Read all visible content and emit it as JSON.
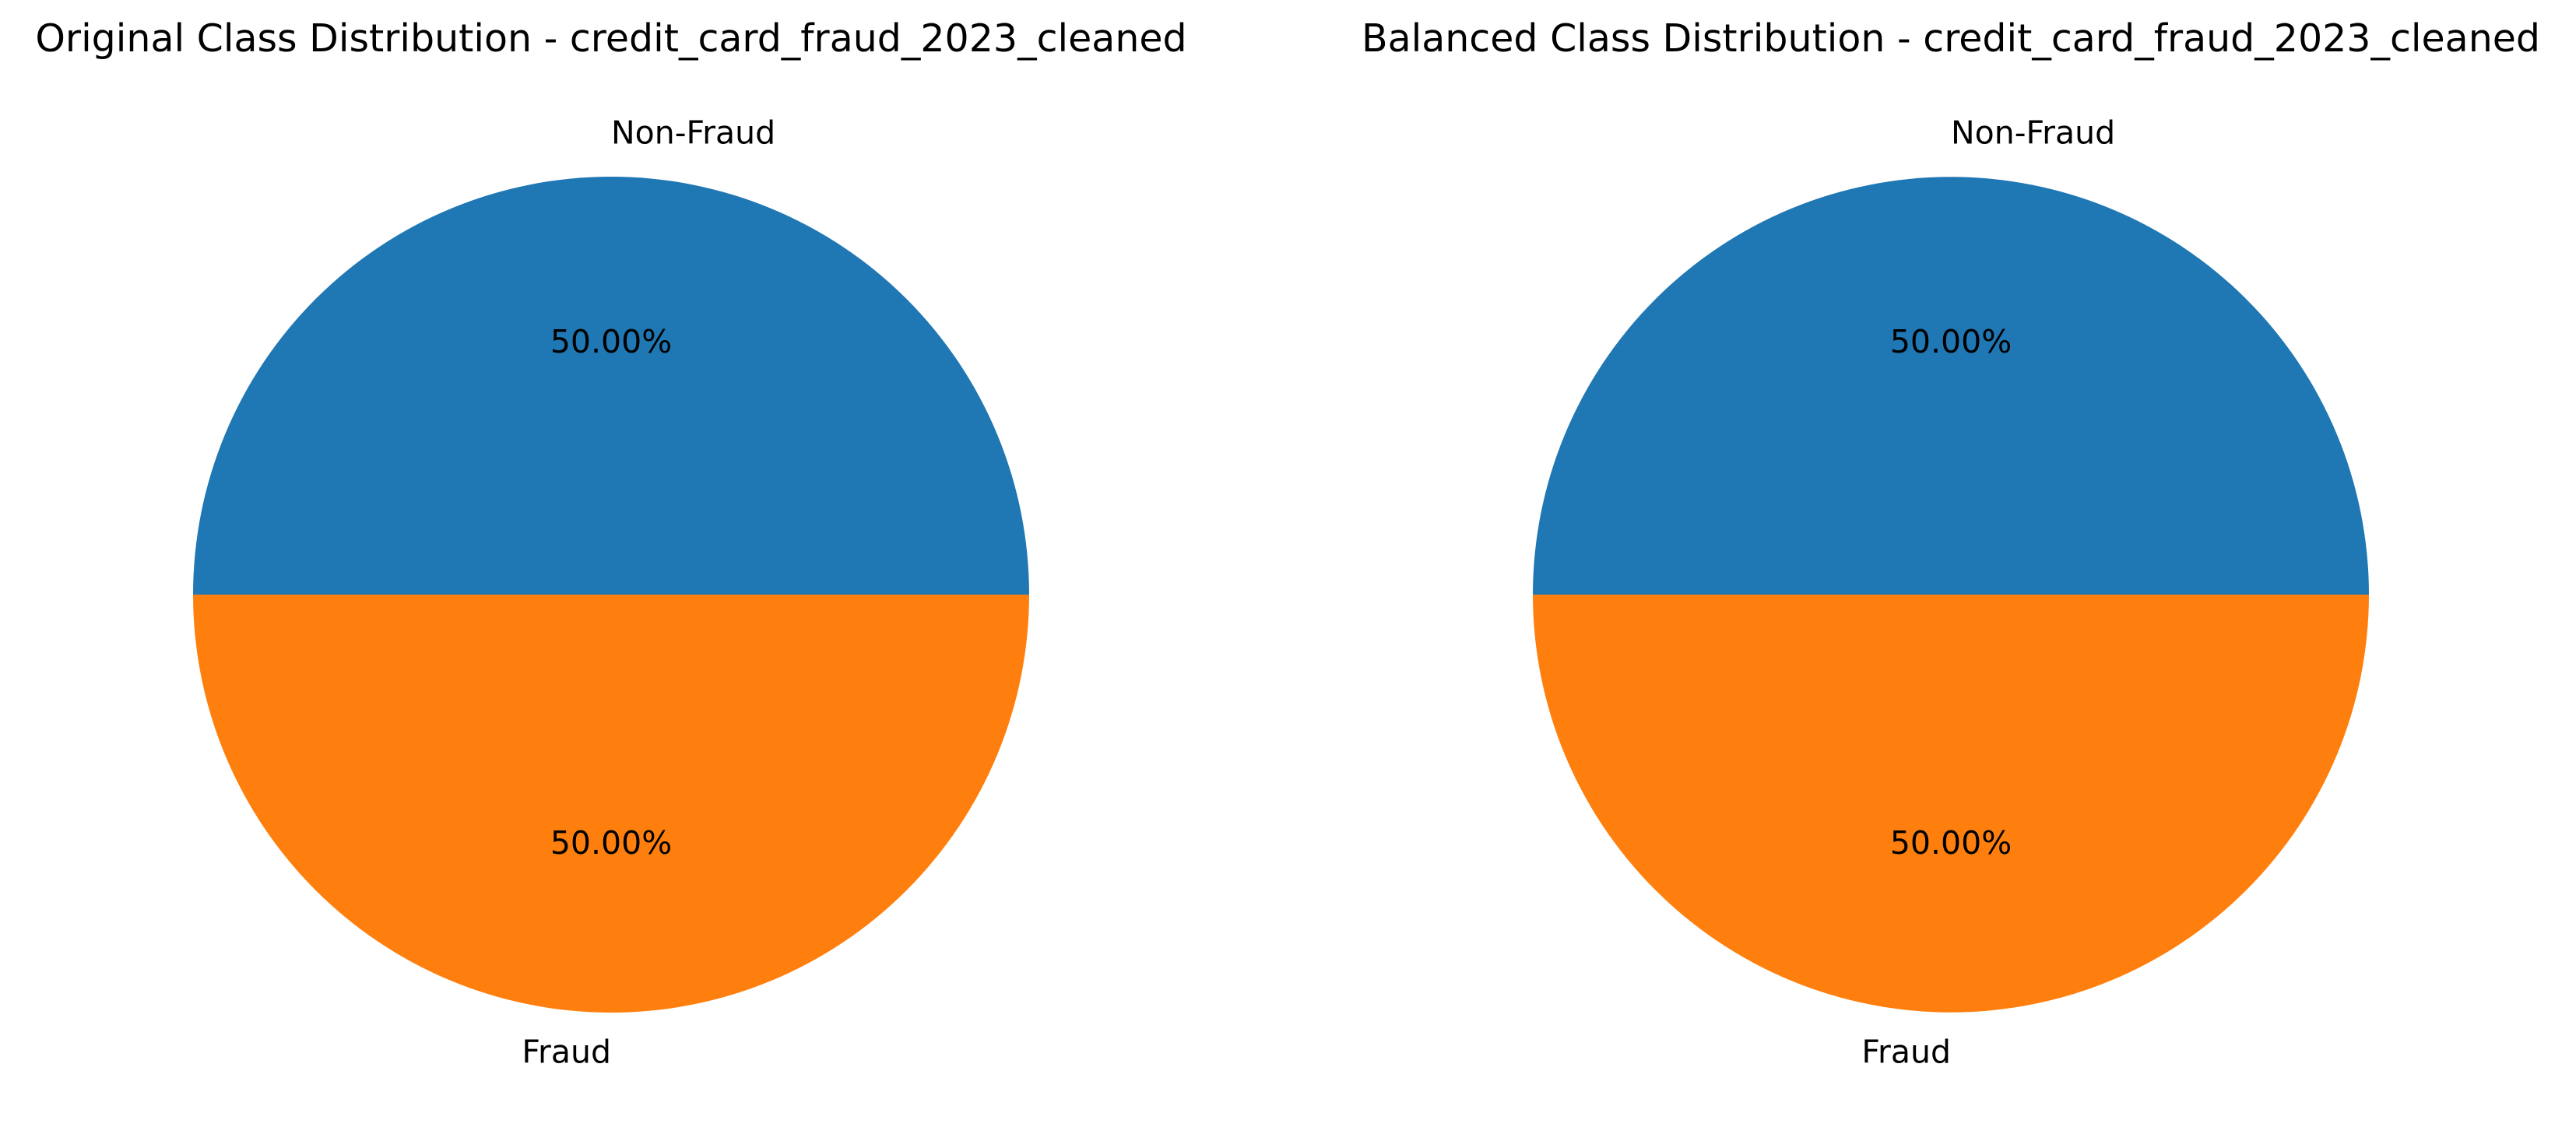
{
  "chart_data": [
    {
      "type": "pie",
      "title": "Original Class Distribution - credit_card_fraud_2023_cleaned",
      "labels": [
        "Non-Fraud",
        "Fraud"
      ],
      "values": [
        50.0,
        50.0
      ],
      "percent_labels": [
        "50.00%",
        "50.00%"
      ],
      "colors": [
        "#1f77b4",
        "#ff7f0e"
      ],
      "start_angle_deg": 0,
      "direction": "counterclockwise"
    },
    {
      "type": "pie",
      "title": "Balanced Class Distribution - credit_card_fraud_2023_cleaned",
      "labels": [
        "Non-Fraud",
        "Fraud"
      ],
      "values": [
        50.0,
        50.0
      ],
      "percent_labels": [
        "50.00%",
        "50.00%"
      ],
      "colors": [
        "#1f77b4",
        "#ff7f0e"
      ],
      "start_angle_deg": 0,
      "direction": "counterclockwise"
    }
  ]
}
